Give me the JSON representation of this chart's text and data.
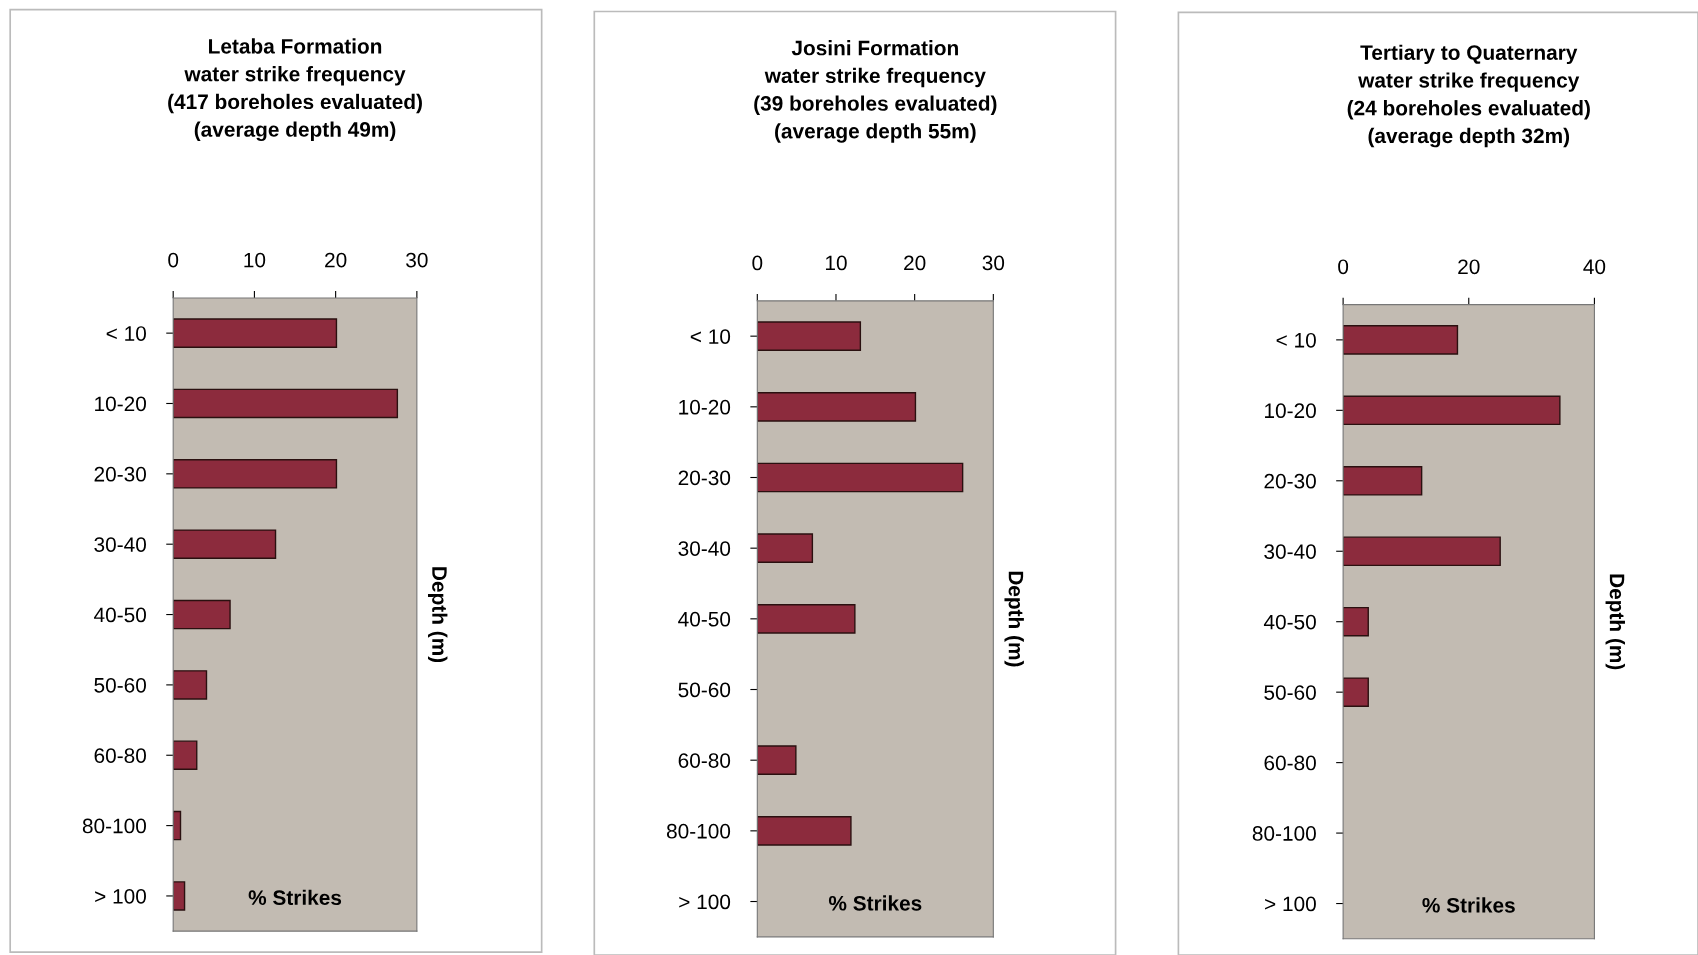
{
  "chart_data": [
    {
      "type": "bar",
      "orientation": "horizontal",
      "title": "Letaba Formation\nwater strike frequency\n(417 boreholes evaluated)\n(average depth 49m)",
      "xlabel": "% Strikes",
      "ylabel": "Depth (m)",
      "categories": [
        "< 10",
        "10-20",
        "20-30",
        "30-40",
        "40-50",
        "50-60",
        "60-80",
        "80-100",
        "> 100"
      ],
      "series": [
        {
          "color": "#8c2b3d",
          "values": [
            20.1,
            27.6,
            20.1,
            12.6,
            7.0,
            4.1,
            2.9,
            0.9,
            1.4
          ]
        }
      ],
      "xlim": [
        0,
        30
      ],
      "xticks": [
        0,
        10,
        20,
        30
      ],
      "grid": false,
      "legend": false
    },
    {
      "type": "bar",
      "orientation": "horizontal",
      "title": "Josini Formation\nwater strike frequency\n(39 boreholes evaluated)\n(average depth 55m)",
      "xlabel": "% Strikes",
      "ylabel": "Depth (m)",
      "categories": [
        "< 10",
        "10-20",
        "20-30",
        "30-40",
        "40-50",
        "50-60",
        "60-80",
        "80-100",
        "> 100"
      ],
      "series": [
        {
          "color": "#8c2b3d",
          "values": [
            13.1,
            20.1,
            26.1,
            7.0,
            12.4,
            null,
            4.9,
            11.9,
            null
          ]
        }
      ],
      "xlim": [
        0,
        30
      ],
      "xticks": [
        0,
        10,
        20,
        30
      ],
      "grid": false,
      "legend": false
    },
    {
      "type": "bar",
      "orientation": "horizontal",
      "title": "Tertiary to Quaternary\nwater strike frequency\n(24 boreholes evaluated)\n(average depth 32m)",
      "xlabel": "% Strikes",
      "ylabel": "Depth (m)",
      "categories": [
        "< 10",
        "10-20",
        "20-30",
        "30-40",
        "40-50",
        "50-60",
        "60-80",
        "80-100",
        "> 100"
      ],
      "series": [
        {
          "color": "#8c2b3d",
          "values": [
            18.2,
            34.5,
            12.5,
            25.0,
            4.0,
            4.0,
            null,
            null,
            null
          ]
        }
      ],
      "xlim": [
        0,
        40
      ],
      "xticks": [
        0,
        20,
        40
      ],
      "grid": false,
      "legend": false
    }
  ]
}
